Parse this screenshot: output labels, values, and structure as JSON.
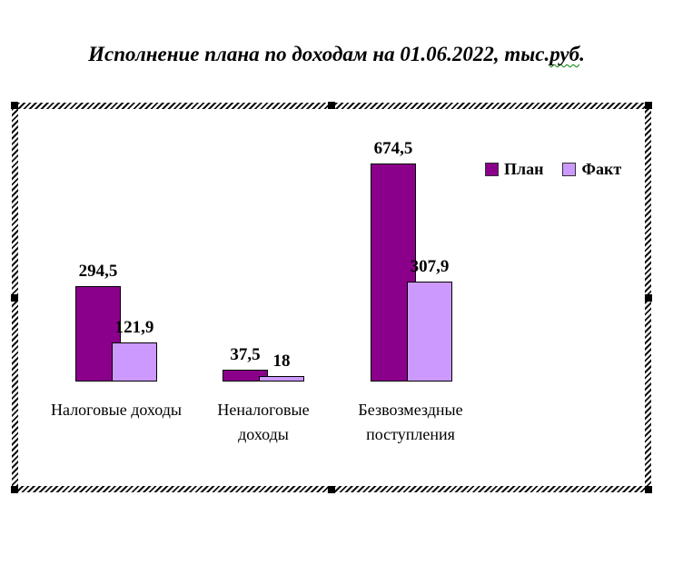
{
  "window": {
    "background": "#ffffff"
  },
  "title": {
    "full": "Исполнение плана по доходам на 01.06.2022, тыс.руб.",
    "pre": "Исполнение плана по доходам на 01.06.2022, тыс.",
    "misspelled": "руб",
    "post": "."
  },
  "legend": {
    "items": [
      {
        "label": "План",
        "color": "#8B008B"
      },
      {
        "label": "Факт",
        "color": "#CC99FF"
      }
    ]
  },
  "chart_data": {
    "type": "bar",
    "title": "Исполнение плана по доходам на 01.06.2022, тыс.руб.",
    "categories": [
      "Налоговые доходы",
      "Неналоговые доходы",
      "Безвозмездные поступления"
    ],
    "category_lines": [
      [
        "Налоговые доходы"
      ],
      [
        "Неналоговые",
        "доходы"
      ],
      [
        "Безвозмездные",
        "поступления"
      ]
    ],
    "series": [
      {
        "name": "План",
        "color": "#8B008B",
        "values": [
          294.5,
          37.5,
          674.5
        ],
        "labels": [
          "294,5",
          "37,5",
          "674,5"
        ]
      },
      {
        "name": "Факт",
        "color": "#CC99FF",
        "values": [
          121.9,
          18,
          307.9
        ],
        "labels": [
          "121,9",
          "18",
          "307,9"
        ]
      }
    ],
    "xlabel": "",
    "ylabel": "",
    "ylim": [
      0,
      700
    ],
    "grid": false,
    "axes_visible": false,
    "data_labels": true,
    "legend_position": "top-right",
    "bar_border_color": "#000000",
    "selection_frame": "hatched-with-handles",
    "spellcheck_underline_color": "#008000"
  }
}
